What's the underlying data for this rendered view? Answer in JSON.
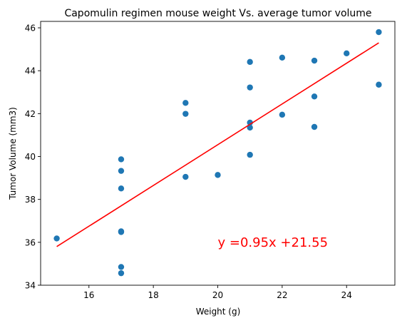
{
  "chart_data": {
    "type": "scatter",
    "title": "Capomulin regimen mouse weight Vs. average tumor volume",
    "xlabel": "Weight (g)",
    "ylabel": "Tumor Volume (mm3)",
    "xlim": [
      14.5,
      25.5
    ],
    "ylim": [
      34,
      46.3
    ],
    "xticks": [
      16,
      18,
      20,
      22,
      24
    ],
    "yticks": [
      34,
      36,
      38,
      40,
      42,
      44,
      46
    ],
    "grid": false,
    "series": [
      {
        "marker_color": "#1f77b4",
        "points": [
          {
            "x": 15,
            "y": 36.18
          },
          {
            "x": 17,
            "y": 39.87
          },
          {
            "x": 17,
            "y": 39.33
          },
          {
            "x": 17,
            "y": 38.51
          },
          {
            "x": 17,
            "y": 36.51
          },
          {
            "x": 17,
            "y": 36.48
          },
          {
            "x": 17,
            "y": 34.85
          },
          {
            "x": 17,
            "y": 34.56
          },
          {
            "x": 19,
            "y": 42.5
          },
          {
            "x": 19,
            "y": 41.99
          },
          {
            "x": 19,
            "y": 39.05
          },
          {
            "x": 20,
            "y": 39.14
          },
          {
            "x": 21,
            "y": 44.41
          },
          {
            "x": 21,
            "y": 43.22
          },
          {
            "x": 21,
            "y": 41.58
          },
          {
            "x": 21,
            "y": 41.35
          },
          {
            "x": 21,
            "y": 40.08
          },
          {
            "x": 22,
            "y": 44.61
          },
          {
            "x": 22,
            "y": 41.95
          },
          {
            "x": 23,
            "y": 44.47
          },
          {
            "x": 23,
            "y": 42.8
          },
          {
            "x": 23,
            "y": 41.38
          },
          {
            "x": 24,
            "y": 44.81
          },
          {
            "x": 25,
            "y": 45.8
          },
          {
            "x": 25,
            "y": 43.35
          }
        ]
      }
    ],
    "regression": {
      "slope": 0.95,
      "intercept": 21.55,
      "x_range": [
        15,
        25
      ],
      "color": "#ff0000"
    },
    "annotation": {
      "text": "y =0.95x +21.55",
      "x": 20,
      "y": 36,
      "color": "#ff0000"
    }
  }
}
